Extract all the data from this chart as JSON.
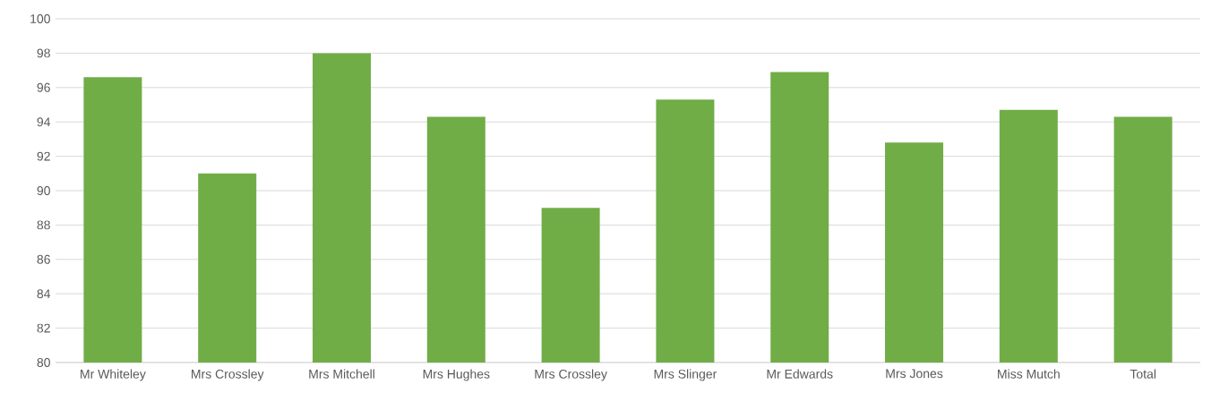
{
  "chart_data": {
    "type": "bar",
    "categories": [
      "Mr Whiteley",
      "Mrs Crossley",
      "Mrs Mitchell",
      "Mrs Hughes",
      "Mrs Crossley",
      "Mrs Slinger",
      "Mr Edwards",
      "Mrs Jones",
      "Miss Mutch",
      "Total"
    ],
    "values": [
      96.6,
      91.0,
      98.0,
      94.3,
      89.0,
      95.3,
      96.9,
      92.8,
      94.7,
      94.3
    ],
    "color": "#70ad47",
    "ylim": [
      80,
      100
    ],
    "yticks": [
      80,
      82,
      84,
      86,
      88,
      90,
      92,
      94,
      96,
      98,
      100
    ],
    "grid": "y"
  }
}
